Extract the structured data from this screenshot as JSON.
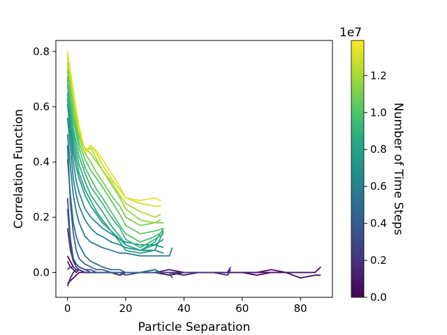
{
  "chart_data": {
    "type": "line",
    "title": "",
    "xlabel": "Particle Separation",
    "ylabel": "Correlation Function",
    "xlim": [
      -4,
      91
    ],
    "ylim": [
      -0.09,
      0.84
    ],
    "xticks": [
      0,
      20,
      40,
      60,
      80
    ],
    "yticks": [
      0.0,
      0.2,
      0.4,
      0.6,
      0.8
    ],
    "xtick_labels": [
      "0",
      "20",
      "40",
      "60",
      "80"
    ],
    "ytick_labels": [
      "0.0",
      "0.2",
      "0.4",
      "0.6",
      "0.8"
    ],
    "grid": false,
    "legend": "none",
    "colormap": "viridis",
    "colorbar": {
      "label": "Number of Time Steps",
      "range": [
        0,
        13900000
      ],
      "ticks": [
        0,
        2000000,
        4000000,
        6000000,
        8000000,
        10000000,
        12000000
      ],
      "tick_labels": [
        "0.0",
        "0.2",
        "0.4",
        "0.6",
        "0.8",
        "1.0",
        "1.2"
      ],
      "offset_text": "1e7"
    },
    "series": [
      {
        "c": 0.1,
        "x": [
          0,
          1,
          2,
          3,
          4,
          6,
          8,
          10,
          12,
          15,
          18,
          20,
          25,
          30,
          35,
          40,
          45,
          50,
          55,
          60,
          65,
          70,
          75,
          80,
          85,
          87
        ],
        "y": [
          0.06,
          0.04,
          0.02,
          0.01,
          0.01,
          0.0,
          0.0,
          0.0,
          0.0,
          0.0,
          -0.01,
          0.0,
          0.0,
          0.0,
          -0.01,
          0.0,
          0.0,
          0.0,
          0.0,
          0.0,
          -0.01,
          0.0,
          0.0,
          0.0,
          0.0,
          0.02
        ]
      },
      {
        "c": 0.4,
        "x": [
          0,
          1,
          2,
          3,
          4,
          6,
          8,
          10,
          12,
          15,
          18,
          20,
          25,
          30,
          35,
          40,
          45,
          50,
          55,
          60,
          65,
          70,
          75,
          80,
          85,
          87
        ],
        "y": [
          -0.04,
          -0.03,
          -0.02,
          -0.01,
          0.0,
          0.0,
          0.0,
          0.0,
          0.0,
          0.0,
          -0.01,
          0.0,
          0.0,
          0.0,
          0.0,
          -0.01,
          0.0,
          0.0,
          0.0,
          0.0,
          0.0,
          0.01,
          0.0,
          -0.02,
          -0.01,
          -0.01
        ]
      },
      {
        "c": 0.8,
        "x": [
          0,
          1,
          2,
          3,
          4,
          6,
          8,
          10,
          12,
          15,
          18,
          20,
          25,
          30,
          35,
          40,
          45,
          50,
          55,
          60,
          65,
          70,
          75,
          80,
          84
        ],
        "y": [
          0.04,
          0.02,
          0.01,
          0.0,
          0.01,
          0.0,
          0.0,
          0.0,
          0.0,
          0.0,
          0.0,
          0.0,
          0.0,
          0.0,
          0.01,
          0.0,
          0.0,
          0.0,
          0.0,
          0.0,
          0.0,
          0.0,
          0.0,
          0.0,
          0.0
        ]
      },
      {
        "c": 1.3,
        "x": [
          0,
          1,
          2,
          3,
          4,
          6,
          8,
          10,
          12,
          15,
          18,
          20,
          25,
          30,
          35,
          40,
          45,
          50,
          55,
          56
        ],
        "y": [
          -0.05,
          -0.02,
          0.0,
          0.01,
          0.01,
          0.0,
          0.0,
          0.0,
          0.0,
          0.0,
          -0.01,
          0.0,
          0.0,
          0.0,
          0.0,
          0.0,
          0.0,
          0.0,
          0.0,
          0.02
        ]
      },
      {
        "c": 1.8,
        "x": [
          0,
          1,
          2,
          3,
          4,
          6,
          8,
          10,
          12,
          15,
          18,
          20,
          25,
          30,
          35,
          40,
          45,
          50,
          55,
          56
        ],
        "y": [
          0.01,
          0.02,
          0.02,
          0.01,
          0.01,
          0.0,
          0.0,
          0.0,
          0.0,
          0.0,
          0.0,
          0.0,
          0.0,
          0.0,
          0.0,
          -0.01,
          0.0,
          0.0,
          -0.01,
          0.01
        ]
      },
      {
        "c": 2.4,
        "x": [
          0,
          1,
          2,
          3,
          4,
          6,
          8,
          10,
          12,
          15,
          18,
          20,
          25,
          30,
          35,
          40,
          43
        ],
        "y": [
          0.16,
          0.08,
          0.04,
          0.02,
          0.01,
          0.0,
          0.0,
          0.0,
          0.0,
          0.0,
          0.0,
          -0.01,
          0.0,
          0.0,
          0.0,
          0.0,
          0.0
        ]
      },
      {
        "c": 3.0,
        "x": [
          0,
          1,
          2,
          3,
          4,
          6,
          8,
          10,
          12,
          15,
          18,
          20,
          25,
          30,
          35,
          36
        ],
        "y": [
          0.27,
          0.12,
          0.05,
          0.03,
          0.02,
          0.01,
          0.0,
          0.0,
          0.0,
          0.0,
          0.0,
          0.0,
          0.0,
          0.0,
          0.0,
          -0.02
        ]
      },
      {
        "c": 3.6,
        "x": [
          0,
          1,
          2,
          3,
          4,
          6,
          8,
          10,
          12,
          15,
          18,
          20,
          25,
          30,
          32
        ],
        "y": [
          0.23,
          0.1,
          0.05,
          0.03,
          0.02,
          0.01,
          0.01,
          0.0,
          0.0,
          0.0,
          0.0,
          0.0,
          0.0,
          0.01,
          0.0
        ]
      },
      {
        "c": 4.3,
        "x": [
          0,
          1,
          2,
          3,
          4,
          6,
          8,
          10,
          12,
          15,
          18,
          20,
          25,
          30,
          32
        ],
        "y": [
          0.46,
          0.25,
          0.14,
          0.08,
          0.05,
          0.03,
          0.02,
          0.01,
          0.01,
          0.0,
          0.0,
          0.0,
          0.0,
          0.01,
          0.0
        ]
      },
      {
        "c": 5.0,
        "x": [
          0,
          1,
          2,
          3,
          4,
          6,
          8,
          10,
          12,
          15,
          18,
          20,
          25,
          30,
          32
        ],
        "y": [
          0.41,
          0.28,
          0.18,
          0.13,
          0.1,
          0.06,
          0.04,
          0.03,
          0.02,
          0.01,
          0.01,
          0.0,
          0.0,
          0.01,
          0.0
        ]
      },
      {
        "c": 5.6,
        "x": [
          0,
          1,
          2,
          3,
          4,
          6,
          8,
          10,
          12,
          15,
          18,
          20,
          25,
          30,
          35,
          36
        ],
        "y": [
          0.5,
          0.38,
          0.28,
          0.22,
          0.18,
          0.13,
          0.11,
          0.1,
          0.09,
          0.08,
          0.07,
          0.07,
          0.06,
          0.06,
          0.06,
          0.09
        ]
      },
      {
        "c": 6.2,
        "x": [
          0,
          1,
          2,
          3,
          4,
          6,
          8,
          10,
          12,
          15,
          18,
          20,
          25,
          30,
          33
        ],
        "y": [
          0.56,
          0.45,
          0.34,
          0.28,
          0.24,
          0.19,
          0.16,
          0.14,
          0.13,
          0.11,
          0.1,
          0.09,
          0.08,
          0.08,
          0.07
        ]
      },
      {
        "c": 6.8,
        "x": [
          0,
          1,
          2,
          3,
          4,
          6,
          8,
          10,
          12,
          15,
          18,
          20,
          25,
          30,
          33
        ],
        "y": [
          0.61,
          0.5,
          0.4,
          0.33,
          0.29,
          0.23,
          0.2,
          0.18,
          0.16,
          0.14,
          0.12,
          0.11,
          0.1,
          0.1,
          0.09
        ]
      },
      {
        "c": 7.4,
        "x": [
          0,
          1,
          2,
          3,
          4,
          6,
          8,
          10,
          12,
          15,
          18,
          20,
          25,
          30,
          33
        ],
        "y": [
          0.63,
          0.53,
          0.44,
          0.38,
          0.34,
          0.28,
          0.24,
          0.21,
          0.18,
          0.15,
          0.12,
          0.1,
          0.08,
          0.1,
          0.12
        ]
      },
      {
        "c": 8.0,
        "x": [
          0,
          1,
          2,
          3,
          4,
          6,
          8,
          10,
          12,
          15,
          18,
          20,
          25,
          30,
          33
        ],
        "y": [
          0.65,
          0.56,
          0.47,
          0.41,
          0.36,
          0.3,
          0.26,
          0.22,
          0.19,
          0.15,
          0.11,
          0.08,
          0.07,
          0.08,
          0.15
        ]
      },
      {
        "c": 8.6,
        "x": [
          0,
          1,
          2,
          3,
          4,
          6,
          8,
          10,
          12,
          15,
          18,
          20,
          25,
          30,
          33
        ],
        "y": [
          0.68,
          0.58,
          0.5,
          0.44,
          0.39,
          0.33,
          0.28,
          0.25,
          0.22,
          0.17,
          0.13,
          0.1,
          0.08,
          0.11,
          0.16
        ]
      },
      {
        "c": 9.2,
        "x": [
          0,
          1,
          2,
          3,
          4,
          6,
          8,
          10,
          12,
          15,
          18,
          20,
          25,
          30,
          33
        ],
        "y": [
          0.7,
          0.6,
          0.52,
          0.47,
          0.42,
          0.36,
          0.31,
          0.28,
          0.25,
          0.2,
          0.16,
          0.12,
          0.09,
          0.12,
          0.14
        ]
      },
      {
        "c": 9.8,
        "x": [
          0,
          1,
          2,
          3,
          4,
          6,
          8,
          10,
          12,
          15,
          18,
          20,
          25,
          30,
          33
        ],
        "y": [
          0.71,
          0.62,
          0.55,
          0.5,
          0.45,
          0.38,
          0.34,
          0.3,
          0.27,
          0.22,
          0.17,
          0.14,
          0.11,
          0.13,
          0.15
        ]
      },
      {
        "c": 10.4,
        "x": [
          0,
          1,
          2,
          3,
          4,
          6,
          8,
          10,
          12,
          15,
          18,
          20,
          25,
          30,
          33
        ],
        "y": [
          0.73,
          0.65,
          0.57,
          0.52,
          0.47,
          0.41,
          0.37,
          0.34,
          0.31,
          0.26,
          0.21,
          0.17,
          0.14,
          0.15,
          0.16
        ]
      },
      {
        "c": 11.0,
        "x": [
          0,
          1,
          2,
          3,
          4,
          6,
          8,
          10,
          12,
          15,
          18,
          20,
          25,
          30,
          33
        ],
        "y": [
          0.74,
          0.67,
          0.6,
          0.54,
          0.49,
          0.43,
          0.4,
          0.36,
          0.33,
          0.28,
          0.24,
          0.2,
          0.17,
          0.18,
          0.18
        ]
      },
      {
        "c": 11.6,
        "x": [
          0,
          1,
          2,
          3,
          4,
          6,
          8,
          10,
          12,
          15,
          18,
          20,
          25,
          30,
          32
        ],
        "y": [
          0.76,
          0.69,
          0.62,
          0.56,
          0.5,
          0.45,
          0.43,
          0.4,
          0.37,
          0.32,
          0.27,
          0.23,
          0.19,
          0.18,
          0.19
        ]
      },
      {
        "c": 12.2,
        "x": [
          0,
          1,
          2,
          3,
          4,
          6,
          8,
          10,
          12,
          15,
          18,
          20,
          25,
          30,
          32
        ],
        "y": [
          0.78,
          0.71,
          0.64,
          0.57,
          0.51,
          0.44,
          0.45,
          0.41,
          0.37,
          0.33,
          0.28,
          0.25,
          0.22,
          0.2,
          0.21
        ]
      },
      {
        "c": 12.8,
        "x": [
          0,
          1,
          2,
          3,
          4,
          6,
          8,
          10,
          12,
          15,
          18,
          20,
          25,
          30,
          32
        ],
        "y": [
          0.79,
          0.72,
          0.65,
          0.58,
          0.52,
          0.43,
          0.46,
          0.43,
          0.39,
          0.34,
          0.3,
          0.27,
          0.25,
          0.24,
          0.24
        ]
      },
      {
        "c": 13.5,
        "x": [
          0,
          1,
          2,
          3,
          4,
          6,
          8,
          10,
          12,
          15,
          18,
          20,
          25,
          30,
          32
        ],
        "y": [
          0.8,
          0.73,
          0.66,
          0.59,
          0.53,
          0.44,
          0.46,
          0.44,
          0.41,
          0.36,
          0.31,
          0.27,
          0.26,
          0.27,
          0.26
        ]
      }
    ]
  }
}
